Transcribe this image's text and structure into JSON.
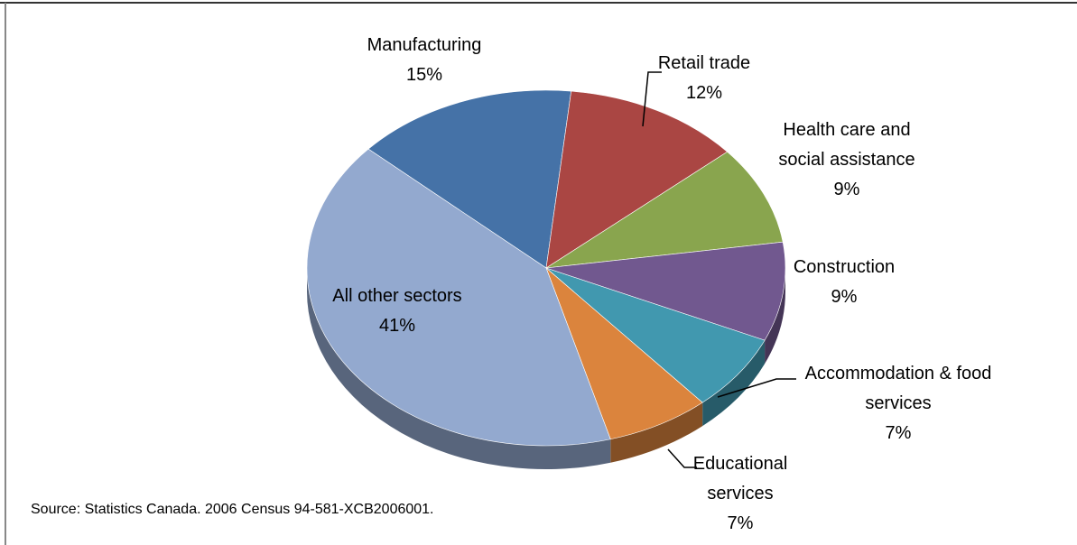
{
  "chart_data": {
    "type": "pie",
    "categories": [
      "Manufacturing",
      "Retail trade",
      "Health care and social assistance",
      "Construction",
      "Accommodation & food services",
      "Educational services",
      "All other sectors"
    ],
    "values": [
      15,
      12,
      9,
      9,
      7,
      7,
      41
    ],
    "value_labels": [
      "15%",
      "12%",
      "9%",
      "9%",
      "7%",
      "7%",
      "41%"
    ],
    "colors": [
      "#4572a7",
      "#aa4643",
      "#89a54e",
      "#71588f",
      "#4198af",
      "#db843d",
      "#93a9cf"
    ],
    "source": "Source:  Statistics Canada. 2006 Census 94-581-XCB2006001."
  }
}
